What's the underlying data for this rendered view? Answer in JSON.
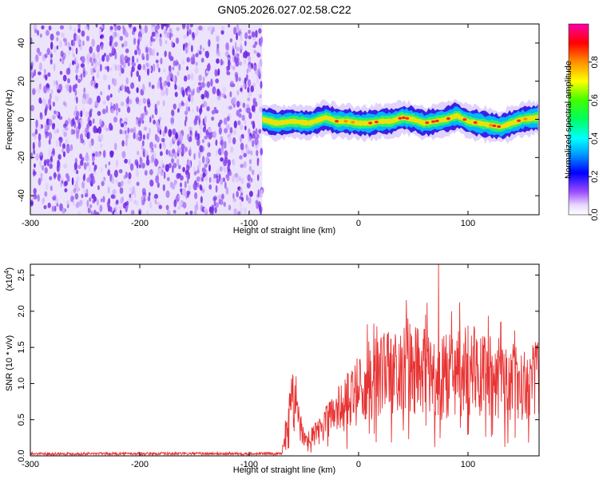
{
  "page": {
    "title": "GN05.2026.027.02.58.C22"
  },
  "colors": {
    "background": "#ffffff",
    "axis": "#000000",
    "snr_line": "#e83333",
    "spectrogram_noise": "#7a32e8"
  },
  "chart_data": [
    {
      "type": "heatmap",
      "title": "GN05.2026.027.02.58.C22",
      "xlabel": "Height of straight line (km)",
      "ylabel": "Frequency (Hz)",
      "xlim": [
        -300,
        165
      ],
      "ylim": [
        -50,
        50
      ],
      "x_ticks": [
        "-300",
        "-200",
        "-100",
        "0",
        "100"
      ],
      "y_ticks": [
        "-40",
        "-20",
        "0",
        "20",
        "40"
      ],
      "colorbar": {
        "label": "Normalized spectral amplitude",
        "range": [
          0,
          1
        ],
        "ticks": [
          "0.0",
          "0.2",
          "0.4",
          "0.6",
          "0.8"
        ],
        "colormap": "rainbow"
      },
      "regions": [
        {
          "description_text": "",
          "x_range": [
            -300,
            -88
          ],
          "freq_range": [
            -50,
            50
          ],
          "amplitude": 0.1
        },
        {
          "x_range": [
            -88,
            165
          ],
          "center_frequency": 0,
          "band_halfwidth": 6,
          "amplitude_peak": 0.9
        }
      ],
      "signal_centerline": {
        "x": [
          -88,
          -75,
          -60,
          -45,
          -30,
          -20,
          -10,
          0,
          10,
          20,
          30,
          40,
          50,
          60,
          70,
          80,
          90,
          100,
          110,
          120,
          130,
          140,
          150,
          165
        ],
        "y": [
          0,
          -2,
          -1,
          -2,
          1,
          -1,
          -1,
          -2,
          -2,
          -1,
          -1,
          1,
          0,
          -2,
          -1,
          0,
          2,
          -1,
          -2,
          -3,
          -4,
          -2,
          0,
          1
        ]
      }
    },
    {
      "type": "line",
      "title": "",
      "xlabel": "Height of straight line (km)",
      "ylabel": "SNR (10 * v/v)",
      "y_scale_label": "(x10",
      "y_scale_exponent": "4",
      "y_scale_suffix": ")",
      "xlim": [
        -300,
        165
      ],
      "ylim": [
        0,
        2.65
      ],
      "x_ticks": [
        "-300",
        "-200",
        "-100",
        "0",
        "100"
      ],
      "y_ticks": [
        "0.0",
        "0.5",
        "1.0",
        "1.5",
        "2.0",
        "2.5"
      ],
      "series": [
        {
          "envelope_x": [
            -300,
            -70,
            -65,
            -60,
            -55,
            -50,
            -45,
            -40,
            -35,
            -30,
            -25,
            -20,
            -15,
            -10,
            -5,
            0,
            10,
            20,
            30,
            40,
            50,
            60,
            70,
            75,
            80,
            90,
            100,
            110,
            120,
            130,
            140,
            150,
            160,
            165
          ],
          "envelope_y": [
            0.03,
            0.03,
            0.4,
            0.8,
            0.5,
            0.25,
            0.22,
            0.3,
            0.35,
            0.45,
            0.55,
            0.6,
            0.7,
            0.75,
            0.8,
            0.9,
            1.05,
            1.1,
            1.15,
            1.2,
            1.2,
            1.15,
            1.1,
            1.05,
            1.1,
            1.15,
            1.2,
            1.15,
            1.1,
            1.05,
            1.0,
            1.05,
            1.05,
            1.0
          ],
          "peaks": [
            {
              "x": -57,
              "y": 1.1
            },
            {
              "x": -35,
              "y": 0.45
            },
            {
              "x": -18,
              "y": 0.95
            },
            {
              "x": 45,
              "y": 1.9
            },
            {
              "x": 60,
              "y": 1.75
            },
            {
              "x": 73,
              "y": 2.65
            },
            {
              "x": 85,
              "y": 2.0
            },
            {
              "x": 100,
              "y": 1.8
            },
            {
              "x": 130,
              "y": 1.85
            },
            {
              "x": 160,
              "y": 1.5
            }
          ]
        }
      ]
    }
  ]
}
